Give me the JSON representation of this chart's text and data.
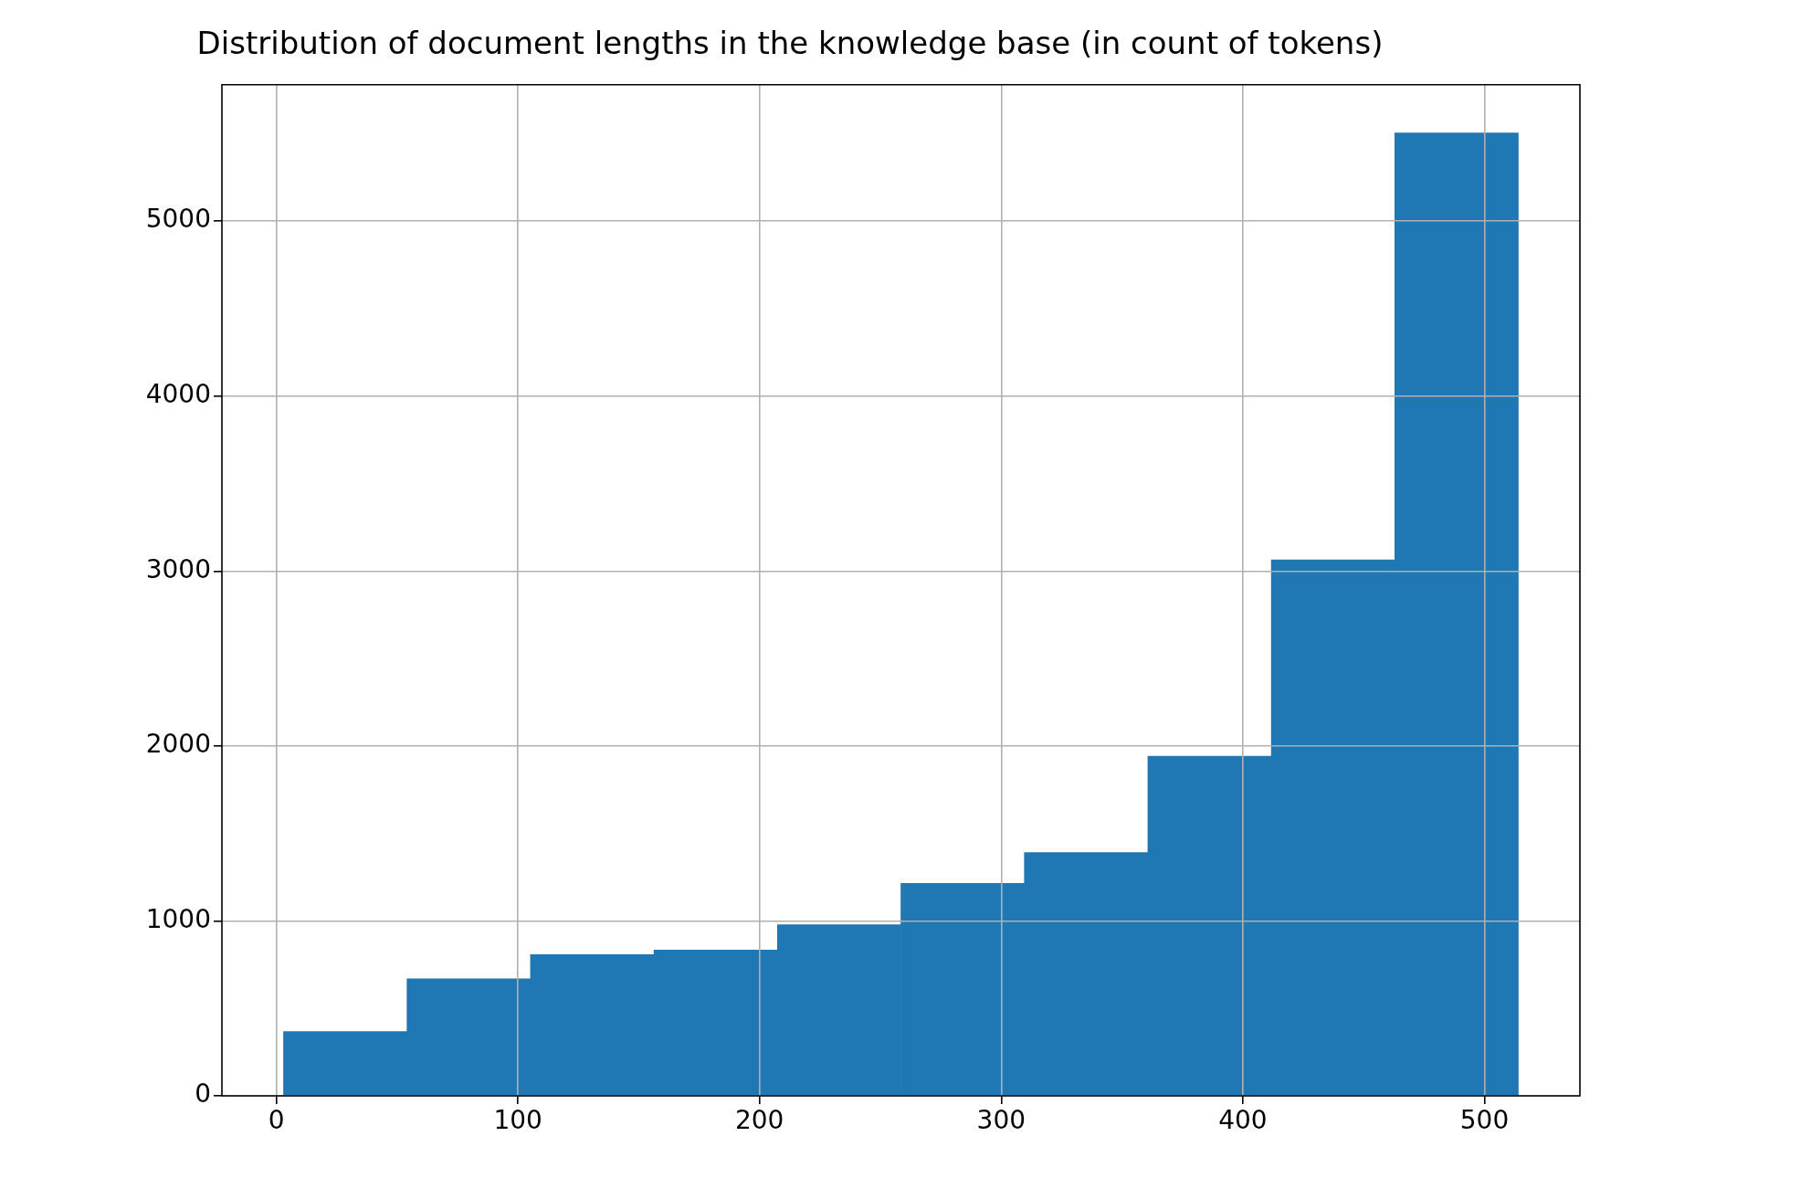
{
  "chart_data": {
    "type": "histogram",
    "title": "Distribution of document lengths in the knowledge base (in count of tokens)",
    "bins": [
      3,
      54.1,
      105.2,
      156.3,
      207.4,
      258.5,
      309.6,
      360.7,
      411.8,
      462.9,
      514
    ],
    "values": [
      367,
      669,
      807,
      833,
      978,
      1214,
      1391,
      1942,
      3064,
      5505
    ],
    "color": "#1f77b4",
    "xlim": [
      -22.5,
      539.5
    ],
    "xticks": [
      0,
      100,
      200,
      300,
      400,
      500
    ],
    "ylim": [
      0,
      5780
    ],
    "yticks": [
      0,
      1000,
      2000,
      3000,
      4000,
      5000
    ],
    "grid": true
  }
}
